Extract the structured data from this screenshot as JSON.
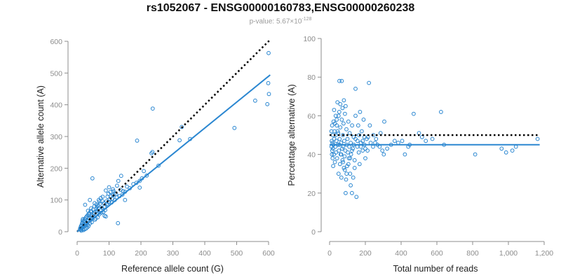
{
  "title": "rs1052067 - ENSG00000160783,ENSG00000260238",
  "subtitle": {
    "prefix": "p-value: 5.67×10",
    "exponent": "-128"
  },
  "colors": {
    "points": "#2b87d1",
    "fit": "#2b87d1",
    "reference": "#000000",
    "axis": "#8c8c8c"
  },
  "chart_data": [
    {
      "type": "scatter",
      "xlabel": "Reference allele count (G)",
      "ylabel": "Alternative allele count (A)",
      "xlim": [
        0,
        600
      ],
      "ylim": [
        0,
        600
      ],
      "xticks": [
        "0",
        "100",
        "200",
        "300",
        "400",
        "500",
        "600"
      ],
      "yticks": [
        "0",
        "100",
        "200",
        "300",
        "400",
        "500",
        "600"
      ],
      "reference_line": {
        "style": "dotted",
        "x": [
          0,
          605
        ],
        "y": [
          0,
          605
        ]
      },
      "fit_line": {
        "x": [
          0,
          605
        ],
        "y": [
          0,
          494
        ]
      },
      "points": [
        [
          600,
          563
        ],
        [
          601,
          434
        ],
        [
          599,
          468
        ],
        [
          596,
          402
        ],
        [
          558,
          413
        ],
        [
          493,
          327
        ],
        [
          354,
          292
        ],
        [
          328,
          330
        ],
        [
          321,
          288
        ],
        [
          237,
          388
        ],
        [
          236,
          251
        ],
        [
          233,
          247
        ],
        [
          255,
          208
        ],
        [
          218,
          177
        ],
        [
          188,
          287
        ],
        [
          209,
          191
        ],
        [
          203,
          168
        ],
        [
          196,
          160
        ],
        [
          186,
          154
        ],
        [
          176,
          150
        ],
        [
          165,
          137
        ],
        [
          196,
          139
        ],
        [
          129,
          160
        ],
        [
          138,
          176
        ],
        [
          125,
          145
        ],
        [
          112,
          134
        ],
        [
          118,
          121
        ],
        [
          104,
          125
        ],
        [
          95,
          110
        ],
        [
          150,
          126
        ],
        [
          142,
          117
        ],
        [
          133,
          112
        ],
        [
          128,
          27
        ],
        [
          48,
          168
        ],
        [
          40,
          100
        ],
        [
          25,
          85
        ],
        [
          55,
          90
        ],
        [
          150,
          100
        ],
        [
          90,
          130
        ],
        [
          100,
          140
        ],
        [
          80,
          110
        ],
        [
          70,
          95
        ],
        [
          62,
          78
        ],
        [
          58,
          64
        ],
        [
          52,
          55
        ],
        [
          48,
          50
        ],
        [
          43,
          44
        ],
        [
          39,
          42
        ],
        [
          35,
          33
        ],
        [
          30,
          28
        ],
        [
          26,
          25
        ],
        [
          22,
          22
        ],
        [
          20,
          30
        ],
        [
          18,
          15
        ],
        [
          16,
          12
        ],
        [
          14,
          20
        ],
        [
          12,
          10
        ],
        [
          11,
          6
        ],
        [
          13,
          3
        ],
        [
          15,
          25
        ],
        [
          17,
          35
        ],
        [
          24,
          40
        ],
        [
          28,
          45
        ],
        [
          33,
          52
        ],
        [
          38,
          58
        ],
        [
          45,
          63
        ],
        [
          50,
          70
        ],
        [
          60,
          72
        ],
        [
          66,
          82
        ],
        [
          72,
          88
        ],
        [
          78,
          75
        ],
        [
          84,
          90
        ],
        [
          88,
          68
        ],
        [
          92,
          96
        ],
        [
          96,
          84
        ],
        [
          102,
          102
        ],
        [
          108,
          92
        ],
        [
          112,
          115
        ],
        [
          118,
          100
        ],
        [
          124,
          108
        ],
        [
          64,
          45
        ],
        [
          70,
          55
        ],
        [
          76,
          60
        ],
        [
          82,
          62
        ],
        [
          86,
          50
        ],
        [
          90,
          48
        ],
        [
          56,
          38
        ],
        [
          46,
          30
        ],
        [
          40,
          26
        ],
        [
          36,
          18
        ],
        [
          32,
          14
        ],
        [
          28,
          10
        ],
        [
          24,
          8
        ],
        [
          20,
          5
        ],
        [
          42,
          64
        ],
        [
          36,
          55
        ],
        [
          30,
          48
        ],
        [
          26,
          40
        ],
        [
          22,
          34
        ],
        [
          54,
          80
        ],
        [
          60,
          86
        ],
        [
          68,
          100
        ],
        [
          74,
          106
        ],
        [
          80,
          96
        ],
        [
          98,
          120
        ],
        [
          106,
          112
        ],
        [
          114,
          128
        ],
        [
          122,
          118
        ],
        [
          136,
          132
        ],
        [
          144,
          128
        ],
        [
          156,
          142
        ],
        [
          34,
          66
        ],
        [
          44,
          74
        ],
        [
          52,
          48
        ],
        [
          58,
          42
        ],
        [
          66,
          58
        ],
        [
          74,
          68
        ],
        [
          20,
          18
        ],
        [
          27,
          20
        ],
        [
          33,
          22
        ],
        [
          41,
          36
        ],
        [
          47,
          42
        ],
        [
          53,
          60
        ],
        [
          63,
          66
        ],
        [
          67,
          74
        ],
        [
          85,
          78
        ],
        [
          93,
          88
        ],
        [
          100,
          94
        ],
        [
          110,
          104
        ],
        [
          18,
          40
        ],
        [
          16,
          28
        ],
        [
          12,
          18
        ],
        [
          10,
          12
        ],
        [
          9,
          8
        ],
        [
          19,
          8
        ]
      ]
    },
    {
      "type": "scatter",
      "xlabel": "Total number of reads",
      "ylabel": "Percentage alternative (A)",
      "xlim": [
        0,
        1200
      ],
      "ylim": [
        0,
        100
      ],
      "xticks": [
        "0",
        "200",
        "400",
        "600",
        "800",
        "1,000",
        "1,200"
      ],
      "yticks": [
        "0",
        "20",
        "40",
        "60",
        "80",
        "100"
      ],
      "reference_line": {
        "style": "dotted",
        "x": [
          0,
          1175
        ],
        "y": [
          50,
          50
        ]
      },
      "fit_line": {
        "x": [
          0,
          1175
        ],
        "y": [
          45,
          45
        ]
      },
      "points": [
        [
          1163,
          48
        ],
        [
          1042,
          44
        ],
        [
          1022,
          42
        ],
        [
          987,
          41
        ],
        [
          962,
          43
        ],
        [
          814,
          40
        ],
        [
          640,
          45
        ],
        [
          623,
          62
        ],
        [
          575,
          48
        ],
        [
          538,
          47
        ],
        [
          517,
          49
        ],
        [
          470,
          61
        ],
        [
          500,
          51
        ],
        [
          448,
          45
        ],
        [
          440,
          44
        ],
        [
          421,
          40
        ],
        [
          406,
          47
        ],
        [
          384,
          46
        ],
        [
          364,
          47
        ],
        [
          344,
          45
        ],
        [
          322,
          43
        ],
        [
          306,
          57
        ],
        [
          303,
          40
        ],
        [
          285,
          51
        ],
        [
          268,
          45
        ],
        [
          255,
          46
        ],
        [
          243,
          44
        ],
        [
          225,
          55
        ],
        [
          220,
          77
        ],
        [
          212,
          42
        ],
        [
          208,
          48
        ],
        [
          200,
          43
        ],
        [
          195,
          49
        ],
        [
          190,
          58
        ],
        [
          180,
          52
        ],
        [
          175,
          44
        ],
        [
          168,
          35
        ],
        [
          163,
          41
        ],
        [
          156,
          47
        ],
        [
          150,
          18
        ],
        [
          145,
          60
        ],
        [
          140,
          37
        ],
        [
          135,
          49
        ],
        [
          130,
          43
        ],
        [
          126,
          55
        ],
        [
          120,
          40
        ],
        [
          118,
          46
        ],
        [
          115,
          30
        ],
        [
          112,
          51
        ],
        [
          110,
          44
        ],
        [
          108,
          38
        ],
        [
          105,
          57
        ],
        [
          102,
          41
        ],
        [
          100,
          48
        ],
        [
          98,
          34
        ],
        [
          96,
          45
        ],
        [
          94,
          53
        ],
        [
          92,
          27
        ],
        [
          90,
          20
        ],
        [
          88,
          42
        ],
        [
          86,
          61
        ],
        [
          84,
          39
        ],
        [
          82,
          47
        ],
        [
          80,
          33
        ],
        [
          78,
          56
        ],
        [
          76,
          44
        ],
        [
          74,
          50
        ],
        [
          72,
          37
        ],
        [
          70,
          43
        ],
        [
          68,
          58
        ],
        [
          66,
          28
        ],
        [
          64,
          46
        ],
        [
          62,
          40
        ],
        [
          60,
          54
        ],
        [
          58,
          35
        ],
        [
          56,
          48
        ],
        [
          54,
          62
        ],
        [
          52,
          42
        ],
        [
          50,
          30
        ],
        [
          48,
          51
        ],
        [
          46,
          45
        ],
        [
          44,
          67
        ],
        [
          42,
          38
        ],
        [
          40,
          55
        ],
        [
          38,
          47
        ],
        [
          36,
          41
        ],
        [
          34,
          60
        ],
        [
          32,
          44
        ],
        [
          30,
          36
        ],
        [
          28,
          52
        ],
        [
          26,
          48
        ],
        [
          24,
          40
        ],
        [
          22,
          57
        ],
        [
          21,
          45
        ],
        [
          20,
          34
        ],
        [
          19,
          43
        ],
        [
          18,
          50
        ],
        [
          17,
          38
        ],
        [
          16,
          46
        ],
        [
          15,
          42
        ],
        [
          14,
          55
        ],
        [
          13,
          40
        ],
        [
          12,
          47
        ],
        [
          11,
          44
        ],
        [
          10,
          52
        ],
        [
          55,
          78
        ],
        [
          68,
          78
        ],
        [
          145,
          74
        ],
        [
          160,
          55
        ],
        [
          170,
          62
        ],
        [
          185,
          47
        ],
        [
          200,
          38
        ],
        [
          118,
          24
        ],
        [
          125,
          20
        ],
        [
          132,
          28
        ],
        [
          140,
          33
        ],
        [
          90,
          65
        ],
        [
          80,
          68
        ],
        [
          72,
          64
        ],
        [
          60,
          66
        ],
        [
          50,
          60
        ],
        [
          40,
          58
        ],
        [
          30,
          56
        ],
        [
          25,
          63
        ],
        [
          35,
          50
        ],
        [
          45,
          52
        ],
        [
          55,
          45
        ],
        [
          65,
          40
        ],
        [
          75,
          36
        ],
        [
          85,
          32
        ],
        [
          95,
          30
        ],
        [
          105,
          35
        ],
        [
          115,
          38
        ],
        [
          125,
          42
        ],
        [
          135,
          45
        ],
        [
          145,
          48
        ],
        [
          155,
          44
        ],
        [
          165,
          50
        ],
        [
          175,
          46
        ],
        [
          185,
          42
        ],
        [
          195,
          45
        ],
        [
          215,
          49
        ],
        [
          230,
          46
        ],
        [
          245,
          50
        ],
        [
          260,
          48
        ],
        [
          280,
          44
        ],
        [
          295,
          42
        ]
      ]
    }
  ]
}
